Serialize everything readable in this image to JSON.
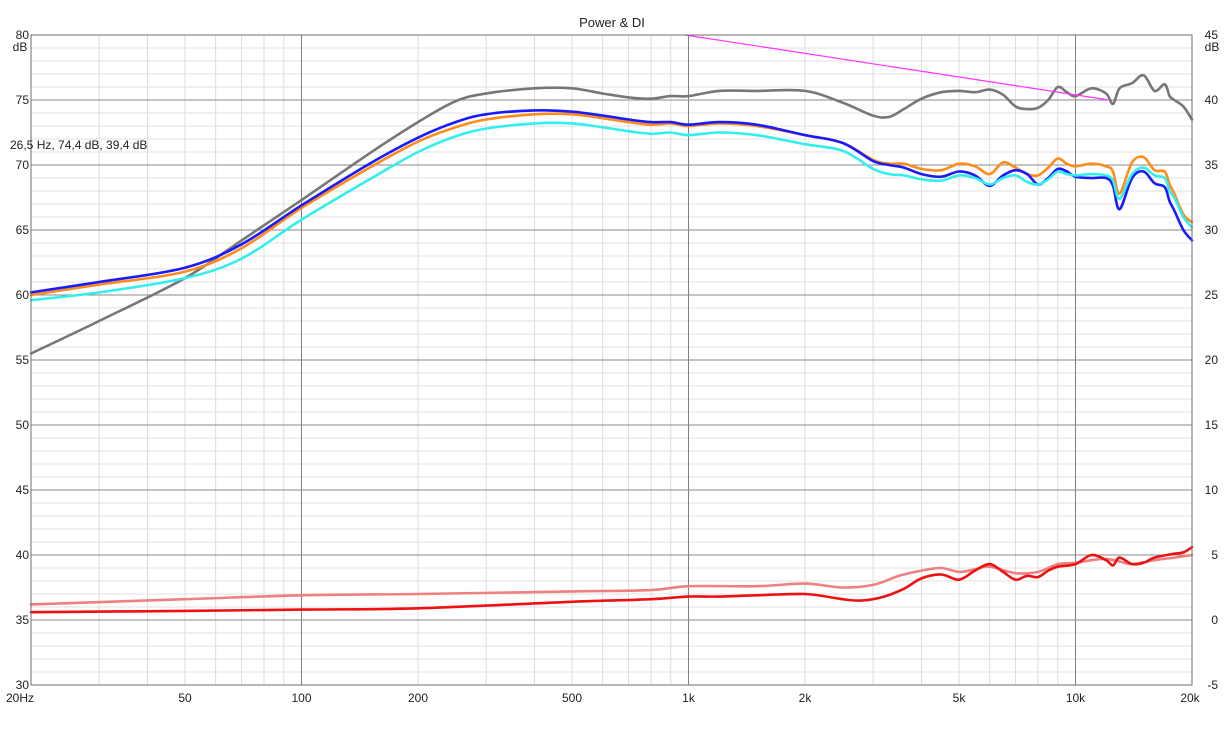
{
  "chart_data": {
    "type": "line",
    "title": "Power & DI",
    "x_scale": "log",
    "xlim": [
      20,
      20000
    ],
    "ylim_left": [
      30,
      80
    ],
    "ylim_right": [
      -5,
      45
    ],
    "left_unit": "dB",
    "right_unit": "dB",
    "x_ticks": [
      {
        "value": 20,
        "label": "20Hz"
      },
      {
        "value": 50,
        "label": "50"
      },
      {
        "value": 100,
        "label": "100"
      },
      {
        "value": 200,
        "label": "200"
      },
      {
        "value": 500,
        "label": "500"
      },
      {
        "value": 1000,
        "label": "1k"
      },
      {
        "value": 2000,
        "label": "2k"
      },
      {
        "value": 5000,
        "label": "5k"
      },
      {
        "value": 10000,
        "label": "10k"
      },
      {
        "value": 20000,
        "label": "20k"
      }
    ],
    "y_left_ticks": [
      {
        "value": 80,
        "label": "80"
      },
      {
        "value": 75,
        "label": "75"
      },
      {
        "value": 70,
        "label": "70"
      },
      {
        "value": 65,
        "label": "65"
      },
      {
        "value": 60,
        "label": "60"
      },
      {
        "value": 55,
        "label": "55"
      },
      {
        "value": 50,
        "label": "50"
      },
      {
        "value": 45,
        "label": "45"
      },
      {
        "value": 40,
        "label": "40"
      },
      {
        "value": 35,
        "label": "35"
      },
      {
        "value": 30,
        "label": "30"
      }
    ],
    "y_right_ticks": [
      {
        "value": 45,
        "label": "45"
      },
      {
        "value": 40,
        "label": "40"
      },
      {
        "value": 35,
        "label": "35"
      },
      {
        "value": 30,
        "label": "30"
      },
      {
        "value": 25,
        "label": "25"
      },
      {
        "value": 20,
        "label": "20"
      },
      {
        "value": 15,
        "label": "15"
      },
      {
        "value": 10,
        "label": "10"
      },
      {
        "value": 5,
        "label": "5"
      },
      {
        "value": 0,
        "label": "0"
      },
      {
        "value": -5,
        "label": "-5"
      }
    ],
    "grid": true,
    "cursor_readout": "26,5 Hz, 74,4 dB, 39,4 dB",
    "series": [
      {
        "color": "#777777",
        "axis": "left",
        "x": [
          20,
          30,
          50,
          70,
          100,
          150,
          200,
          250,
          300,
          400,
          500,
          600,
          700,
          800,
          900,
          1000,
          1200,
          1500,
          2000,
          2500,
          3000,
          3300,
          3600,
          4000,
          4500,
          5000,
          5500,
          6000,
          6500,
          7000,
          7500,
          8000,
          8500,
          9000,
          9500,
          10000,
          11000,
          12000,
          12500,
          13000,
          14000,
          15000,
          16000,
          17000,
          17500,
          18000,
          19000,
          20000
        ],
        "values": [
          55.5,
          58.0,
          61.3,
          64.2,
          67.3,
          70.9,
          73.3,
          74.9,
          75.5,
          75.9,
          75.9,
          75.5,
          75.2,
          75.1,
          75.3,
          75.3,
          75.7,
          75.7,
          75.7,
          74.8,
          73.8,
          73.7,
          74.3,
          75.1,
          75.6,
          75.7,
          75.6,
          75.8,
          75.4,
          74.5,
          74.3,
          74.4,
          75.0,
          76.0,
          75.6,
          75.3,
          75.9,
          75.5,
          74.7,
          75.9,
          76.3,
          76.9,
          75.7,
          76.2,
          75.3,
          75.0,
          74.5,
          73.5
        ]
      },
      {
        "color": "#ff8c1a",
        "axis": "left",
        "x": [
          20,
          30,
          50,
          70,
          100,
          150,
          200,
          250,
          300,
          400,
          500,
          600,
          700,
          800,
          900,
          1000,
          1200,
          1500,
          2000,
          2500,
          3000,
          3300,
          3600,
          4000,
          4500,
          5000,
          5500,
          6000,
          6500,
          7000,
          7500,
          8000,
          8500,
          9000,
          9500,
          10000,
          11000,
          12000,
          12500,
          13000,
          14000,
          15000,
          16000,
          17000,
          17500,
          18000,
          19000,
          20000
        ],
        "values": [
          60.0,
          60.8,
          61.8,
          63.6,
          66.7,
          69.8,
          71.8,
          72.9,
          73.5,
          73.9,
          73.9,
          73.6,
          73.3,
          73.1,
          73.2,
          73.0,
          73.2,
          73.0,
          72.3,
          71.7,
          70.4,
          70.1,
          70.1,
          69.7,
          69.6,
          70.1,
          69.9,
          69.3,
          70.2,
          69.8,
          69.3,
          69.2,
          69.8,
          70.5,
          70.1,
          69.9,
          70.1,
          69.9,
          69.5,
          67.8,
          70.2,
          70.6,
          69.6,
          69.5,
          68.5,
          67.8,
          66.2,
          65.6
        ]
      },
      {
        "color": "#1a1aff",
        "axis": "left",
        "x": [
          20,
          30,
          50,
          70,
          100,
          150,
          200,
          250,
          300,
          400,
          500,
          600,
          700,
          800,
          900,
          1000,
          1200,
          1500,
          2000,
          2500,
          3000,
          3300,
          3600,
          4000,
          4500,
          5000,
          5500,
          6000,
          6500,
          7000,
          7500,
          8000,
          8500,
          9000,
          9500,
          10000,
          11000,
          12000,
          12500,
          13000,
          14000,
          15000,
          16000,
          17000,
          17500,
          18000,
          19000,
          20000
        ],
        "values": [
          60.2,
          61.0,
          62.1,
          63.9,
          66.9,
          70.1,
          72.1,
          73.3,
          73.9,
          74.2,
          74.1,
          73.8,
          73.5,
          73.3,
          73.3,
          73.1,
          73.3,
          73.1,
          72.3,
          71.7,
          70.3,
          70.0,
          69.8,
          69.3,
          69.1,
          69.5,
          69.2,
          68.4,
          69.2,
          69.6,
          69.3,
          68.5,
          69.0,
          69.7,
          69.5,
          69.1,
          69.0,
          69.0,
          68.4,
          66.6,
          69.0,
          69.5,
          68.6,
          68.3,
          67.2,
          66.5,
          65.0,
          64.2
        ]
      },
      {
        "color": "#33eeee",
        "axis": "left",
        "x": [
          20,
          30,
          50,
          70,
          100,
          150,
          200,
          250,
          300,
          400,
          500,
          600,
          700,
          800,
          900,
          1000,
          1200,
          1500,
          2000,
          2500,
          3000,
          3300,
          3600,
          4000,
          4500,
          5000,
          5500,
          6000,
          6500,
          7000,
          7500,
          8000,
          8500,
          9000,
          9500,
          10000,
          11000,
          12000,
          12500,
          13000,
          14000,
          15000,
          16000,
          17000,
          17500,
          18000,
          19000,
          20000
        ],
        "values": [
          59.6,
          60.2,
          61.3,
          62.8,
          65.8,
          68.9,
          71.0,
          72.2,
          72.8,
          73.2,
          73.2,
          72.9,
          72.6,
          72.4,
          72.5,
          72.3,
          72.5,
          72.3,
          71.6,
          71.1,
          69.7,
          69.3,
          69.2,
          68.9,
          68.8,
          69.2,
          69.0,
          68.5,
          69.0,
          69.2,
          68.7,
          68.5,
          68.9,
          69.5,
          69.3,
          69.2,
          69.3,
          69.2,
          68.8,
          67.4,
          69.3,
          69.8,
          69.2,
          69.0,
          68.0,
          67.5,
          66.0,
          65.2
        ]
      },
      {
        "color": "#f08080",
        "axis": "right",
        "x": [
          20,
          50,
          100,
          200,
          500,
          800,
          1000,
          1500,
          2000,
          2500,
          3000,
          3500,
          4000,
          4500,
          5000,
          5500,
          6000,
          7000,
          8000,
          9000,
          10000,
          11000,
          12000,
          13000,
          14000,
          16000,
          18000,
          20000
        ],
        "values": [
          1.2,
          1.6,
          1.9,
          2.0,
          2.2,
          2.3,
          2.6,
          2.6,
          2.8,
          2.5,
          2.7,
          3.4,
          3.8,
          4.0,
          3.7,
          3.9,
          4.1,
          3.6,
          3.7,
          4.3,
          4.4,
          4.6,
          4.7,
          4.5,
          4.3,
          4.6,
          4.8,
          5.0
        ]
      },
      {
        "color": "#ee1111",
        "axis": "right",
        "x": [
          20,
          50,
          100,
          200,
          500,
          800,
          1000,
          1200,
          1500,
          2000,
          2500,
          2800,
          3200,
          3600,
          4000,
          4500,
          5000,
          5500,
          6000,
          6500,
          7000,
          7500,
          8000,
          8500,
          9000,
          10000,
          11000,
          12000,
          12500,
          13000,
          14000,
          15000,
          16000,
          18000,
          19000,
          20000
        ],
        "values": [
          0.6,
          0.7,
          0.8,
          0.9,
          1.4,
          1.6,
          1.8,
          1.8,
          1.9,
          2.0,
          1.6,
          1.5,
          1.8,
          2.4,
          3.2,
          3.5,
          3.1,
          3.8,
          4.3,
          3.7,
          3.1,
          3.4,
          3.3,
          3.8,
          4.1,
          4.3,
          5.0,
          4.6,
          4.2,
          4.8,
          4.3,
          4.4,
          4.8,
          5.1,
          5.2,
          5.6
        ]
      },
      {
        "color": "#ff33ff",
        "axis": "left",
        "x": [
          980,
          12200
        ],
        "values": [
          80.0,
          75.0
        ]
      }
    ]
  }
}
